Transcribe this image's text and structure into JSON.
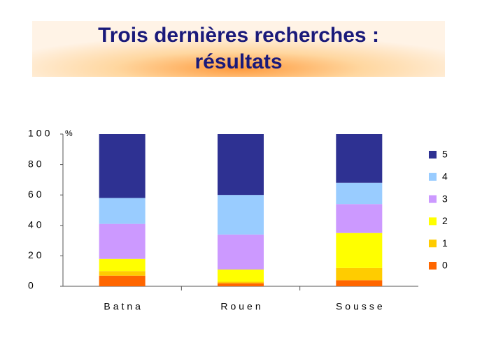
{
  "chart_data": {
    "type": "stacked-bar",
    "title": [
      "Trois dernières recherches :",
      "résultats"
    ],
    "y_unit": "%",
    "categories": [
      "Batna",
      "Rouen",
      "Sousse"
    ],
    "series": [
      {
        "name": "0",
        "color": "#ff6600",
        "values": [
          7,
          2,
          4
        ]
      },
      {
        "name": "1",
        "color": "#ffcc00",
        "values": [
          3,
          1,
          8
        ]
      },
      {
        "name": "2",
        "color": "#ffff00",
        "values": [
          8,
          8,
          23
        ]
      },
      {
        "name": "3",
        "color": "#cc99ff",
        "values": [
          23,
          23,
          19
        ]
      },
      {
        "name": "4",
        "color": "#99ccff",
        "values": [
          17,
          26,
          14
        ]
      },
      {
        "name": "5",
        "color": "#2e3192",
        "values": [
          42,
          40,
          32
        ]
      }
    ],
    "ylim": [
      0,
      100
    ],
    "yticks": [
      0,
      20,
      40,
      60,
      80,
      100
    ],
    "legend": "right"
  }
}
